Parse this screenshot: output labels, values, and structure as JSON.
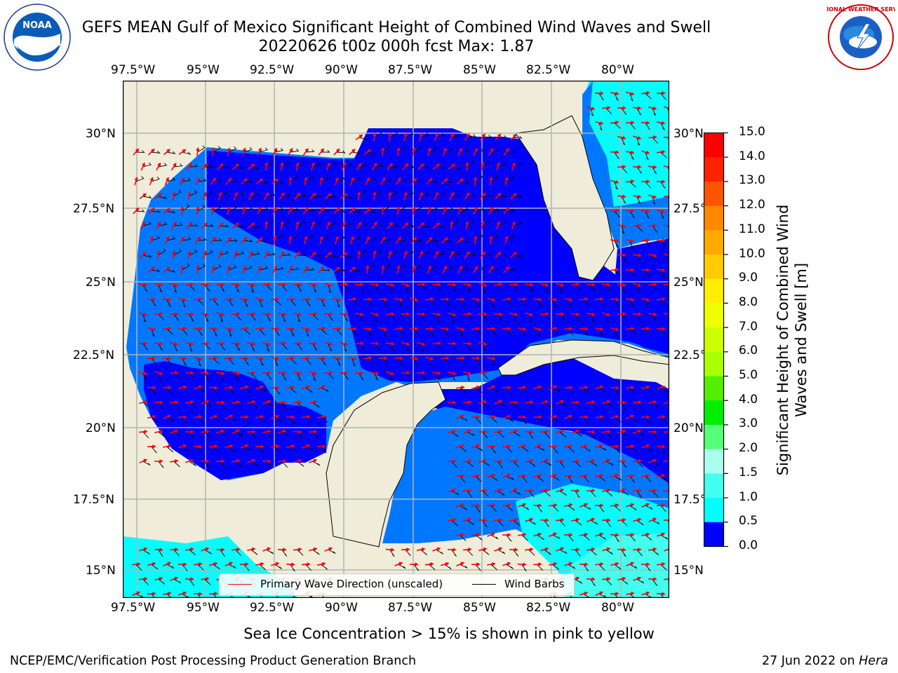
{
  "title": {
    "line1": "GEFS MEAN Gulf of Mexico Significant Height of Combined Wind Waves and Swell",
    "line2": "20220626 t00z 000h fcst   Max: 1.87"
  },
  "map": {
    "lon_ticks": [
      "97.5°W",
      "95°W",
      "92.5°W",
      "90°W",
      "87.5°W",
      "85°W",
      "82.5°W",
      "80°W"
    ],
    "lat_ticks_left": [
      "30°N",
      "27.5°N",
      "25°N",
      "22.5°N",
      "20°N",
      "17.5°N",
      "15°N"
    ],
    "lat_ticks_right": [
      "30°N",
      "27.5°N",
      "25°N",
      "22.5°N",
      "20°N",
      "17.5°N",
      "15°N"
    ],
    "colors": {
      "land": "#efedd9",
      "band_0_0_5": "#0000ff",
      "band_0_5_1_0": "#0077ff",
      "band_1_0_1_5": "#00ffff",
      "band_1_5_2_0": "#44ffee",
      "wave_arrow": "#ff0000",
      "wind_barb": "#000000"
    }
  },
  "colorbar": {
    "title": "Significant Height of Combined Wind Waves and Swell [m]",
    "labels": [
      "15.0",
      "14.0",
      "13.0",
      "12.0",
      "11.0",
      "10.0",
      "9.0",
      "8.0",
      "7.0",
      "6.0",
      "5.0",
      "4.0",
      "3.0",
      "2.0",
      "1.5",
      "1.0",
      "0.5",
      "0.0"
    ],
    "colors": [
      "#ff0000",
      "#ff2200",
      "#ff5500",
      "#ff8800",
      "#ffaa00",
      "#ffcc00",
      "#ffee00",
      "#eeff00",
      "#ccff00",
      "#aaff00",
      "#55ee00",
      "#00ee00",
      "#55ff77",
      "#aaffee",
      "#44ffee",
      "#00ffff",
      "#0077ff",
      "#0000ff"
    ]
  },
  "legend": {
    "wave": "Primary Wave Direction (unscaled)",
    "barbs": "Wind Barbs"
  },
  "logos": {
    "noaa": "NOAA",
    "nws": "NATIONAL WEATHER SERVICE"
  },
  "subnote": "Sea Ice Concentration > 15% is shown in pink to yellow",
  "footer": {
    "left": "NCEP/EMC/Verification Post Processing Product Generation Branch",
    "date": "27 Jun 2022 on ",
    "host": "Hera"
  }
}
